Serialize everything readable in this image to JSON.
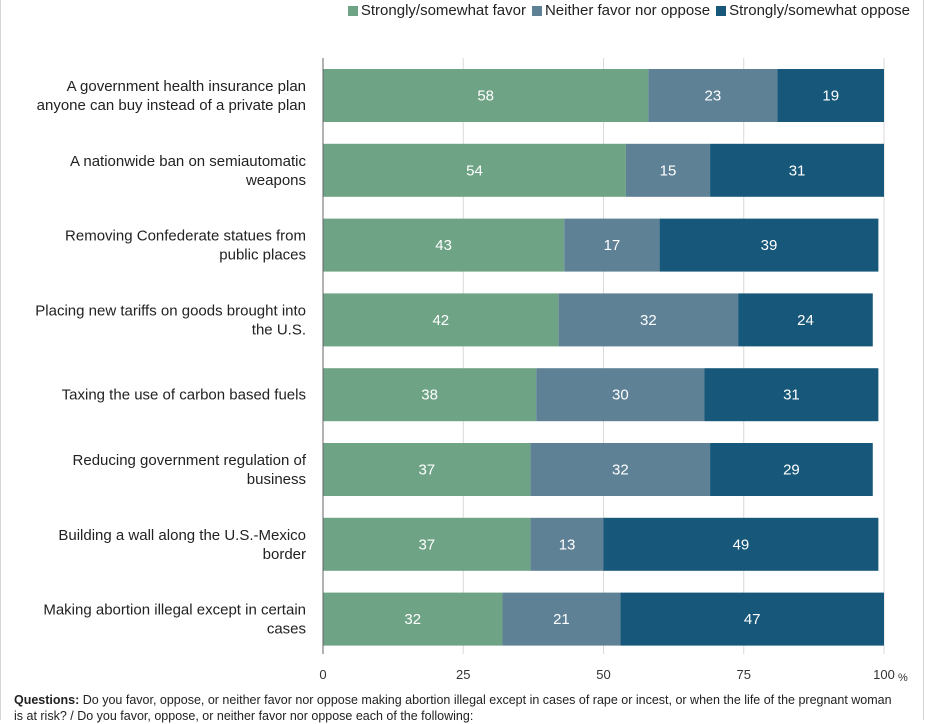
{
  "colors": {
    "favor": "#6fa386",
    "neither": "#5f8196",
    "oppose": "#17587a",
    "grid": "#d9d9d9",
    "axis": "#666666"
  },
  "legend": [
    {
      "label": "Strongly/somewhat favor",
      "color": "#6fa386"
    },
    {
      "label": "Neither favor nor oppose",
      "color": "#5f8196"
    },
    {
      "label": "Strongly/somewhat oppose",
      "color": "#17587a"
    }
  ],
  "chart_data": {
    "type": "bar",
    "orientation": "horizontal",
    "stacked": true,
    "categories": [
      [
        "A government health insurance plan",
        "anyone can buy instead of a private plan"
      ],
      [
        "A nationwide ban on semiautomatic",
        "weapons"
      ],
      [
        "Removing Confederate statues from",
        "public places"
      ],
      [
        "Placing new tariffs on goods brought into",
        "the U.S."
      ],
      [
        "Taxing the use of carbon based fuels"
      ],
      [
        "Reducing government regulation of",
        "business"
      ],
      [
        "Building a wall along the U.S.-Mexico",
        "border"
      ],
      [
        "Making abortion illegal except in certain",
        "cases"
      ]
    ],
    "series": [
      {
        "name": "Strongly/somewhat favor",
        "values": [
          58,
          54,
          43,
          42,
          38,
          37,
          37,
          32
        ]
      },
      {
        "name": "Neither favor nor oppose",
        "values": [
          23,
          15,
          17,
          32,
          30,
          32,
          13,
          21
        ]
      },
      {
        "name": "Strongly/somewhat oppose",
        "values": [
          19,
          31,
          39,
          24,
          31,
          29,
          49,
          47
        ]
      }
    ],
    "xlim": [
      0,
      100
    ],
    "xticks": [
      0,
      25,
      50,
      75,
      100
    ],
    "xticklabels": [
      "0",
      "25",
      "50",
      "75",
      "100"
    ],
    "xunit": "%",
    "grid": true,
    "legend_position": "top-right"
  },
  "footnote": {
    "bold": "Questions:",
    "text": " Do you favor, oppose, or neither favor nor oppose making abortion illegal except in cases of rape or incest, or when the life of the pregnant woman is at risk? / Do you favor, oppose, or neither favor nor oppose each of the following:"
  }
}
